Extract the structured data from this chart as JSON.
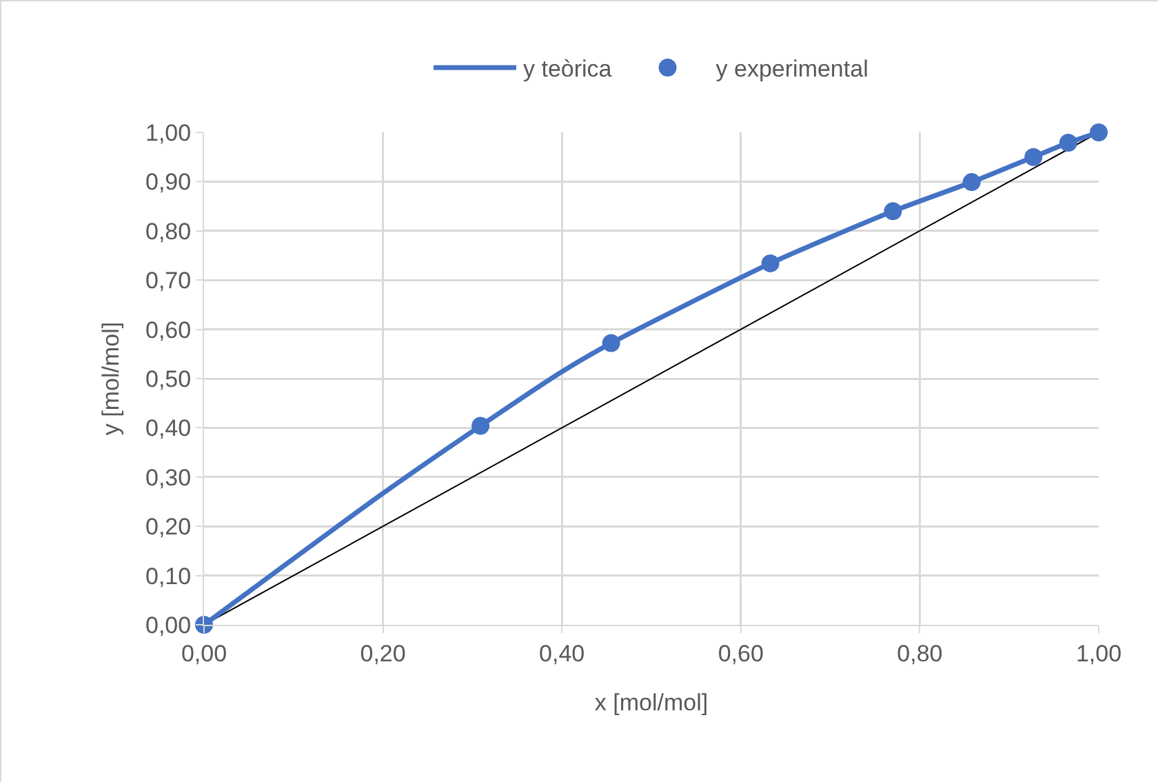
{
  "chart_data": {
    "type": "line",
    "xlabel": "x [mol/mol]",
    "ylabel": "y [mol/mol]",
    "xlim": [
      0,
      1
    ],
    "ylim": [
      0,
      1
    ],
    "xticks": [
      {
        "value": 0,
        "label": "0,00"
      },
      {
        "value": 0.2,
        "label": "0,20"
      },
      {
        "value": 0.4,
        "label": "0,40"
      },
      {
        "value": 0.6,
        "label": "0,60"
      },
      {
        "value": 0.8,
        "label": "0,80"
      },
      {
        "value": 1,
        "label": "1,00"
      }
    ],
    "yticks": [
      {
        "value": 0,
        "label": "0,00"
      },
      {
        "value": 0.1,
        "label": "0,10"
      },
      {
        "value": 0.2,
        "label": "0,20"
      },
      {
        "value": 0.3,
        "label": "0,30"
      },
      {
        "value": 0.4,
        "label": "0,40"
      },
      {
        "value": 0.5,
        "label": "0,50"
      },
      {
        "value": 0.6,
        "label": "0,60"
      },
      {
        "value": 0.7,
        "label": "0,70"
      },
      {
        "value": 0.8,
        "label": "0,80"
      },
      {
        "value": 0.9,
        "label": "0,90"
      },
      {
        "value": 1,
        "label": "1,00"
      }
    ],
    "grid": true,
    "legend": "top",
    "series": [
      {
        "name": "y teòrica",
        "color": "#4472c4",
        "marker": "none",
        "x": [
          0,
          0.2,
          0.309,
          0.4,
          0.455,
          0.633,
          0.77,
          0.858,
          0.927,
          0.966,
          1
        ],
        "values": [
          0,
          0.267,
          0.404,
          0.514,
          0.572,
          0.734,
          0.84,
          0.899,
          0.95,
          0.979,
          1
        ]
      },
      {
        "name": "y experimental",
        "type": "scatter",
        "color": "#4472c4",
        "marker": "circle",
        "x": [
          0,
          0.309,
          0.455,
          0.633,
          0.77,
          0.858,
          0.927,
          0.966,
          1
        ],
        "values": [
          0,
          0.404,
          0.572,
          0.734,
          0.84,
          0.899,
          0.95,
          0.979,
          1
        ]
      },
      {
        "color": "#000000",
        "marker": "none",
        "x": [
          0,
          1
        ],
        "values": [
          0,
          1
        ]
      }
    ]
  }
}
